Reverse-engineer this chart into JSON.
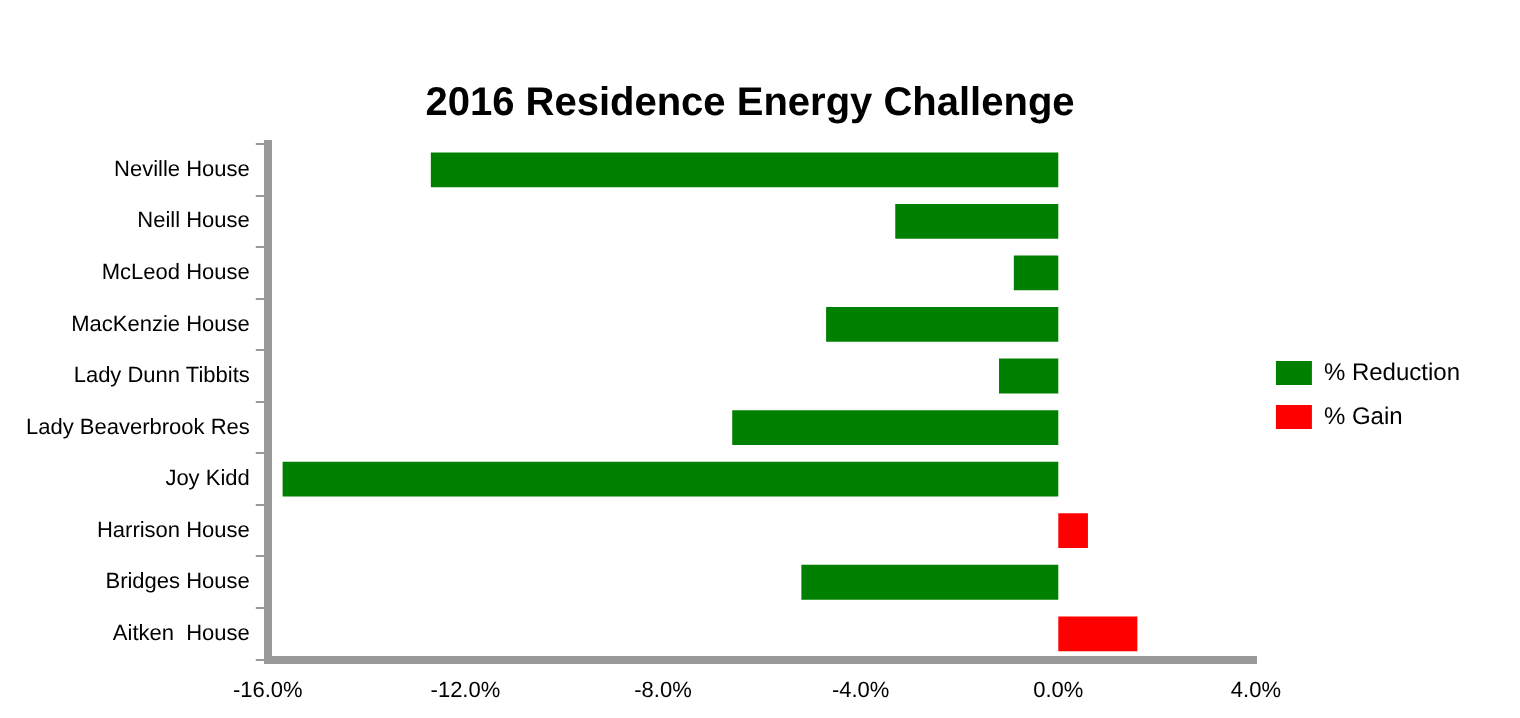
{
  "chart_data": {
    "type": "bar",
    "orientation": "horizontal",
    "stacked": true,
    "title": "2016 Residence Energy Challenge",
    "categories": [
      "Neville House",
      "Neill House",
      "McLeod House",
      "MacKenzie House",
      "Lady Dunn Tibbits",
      "Lady Beaverbrook Res",
      "Joy Kidd",
      "Harrison House",
      "Bridges House",
      "Aitken  House"
    ],
    "series": [
      {
        "name": "% Reduction",
        "color": "#008000",
        "values": [
          -12.7,
          -3.3,
          -0.9,
          -4.7,
          -1.2,
          -6.6,
          -15.7,
          null,
          -5.2,
          null
        ]
      },
      {
        "name": "% Gain",
        "color": "#ff0000",
        "values": [
          null,
          null,
          null,
          null,
          null,
          null,
          null,
          0.6,
          null,
          1.6
        ]
      }
    ],
    "xlim": [
      -16,
      4
    ],
    "xticks": [
      {
        "value": -16,
        "label": "-16.0%"
      },
      {
        "value": -12,
        "label": "-12.0%"
      },
      {
        "value": -8,
        "label": "-8.0%"
      },
      {
        "value": -4,
        "label": "-4.0%"
      },
      {
        "value": 0,
        "label": "0.0%"
      },
      {
        "value": 4,
        "label": "4.0%"
      }
    ],
    "grid": false,
    "legend": "right"
  }
}
